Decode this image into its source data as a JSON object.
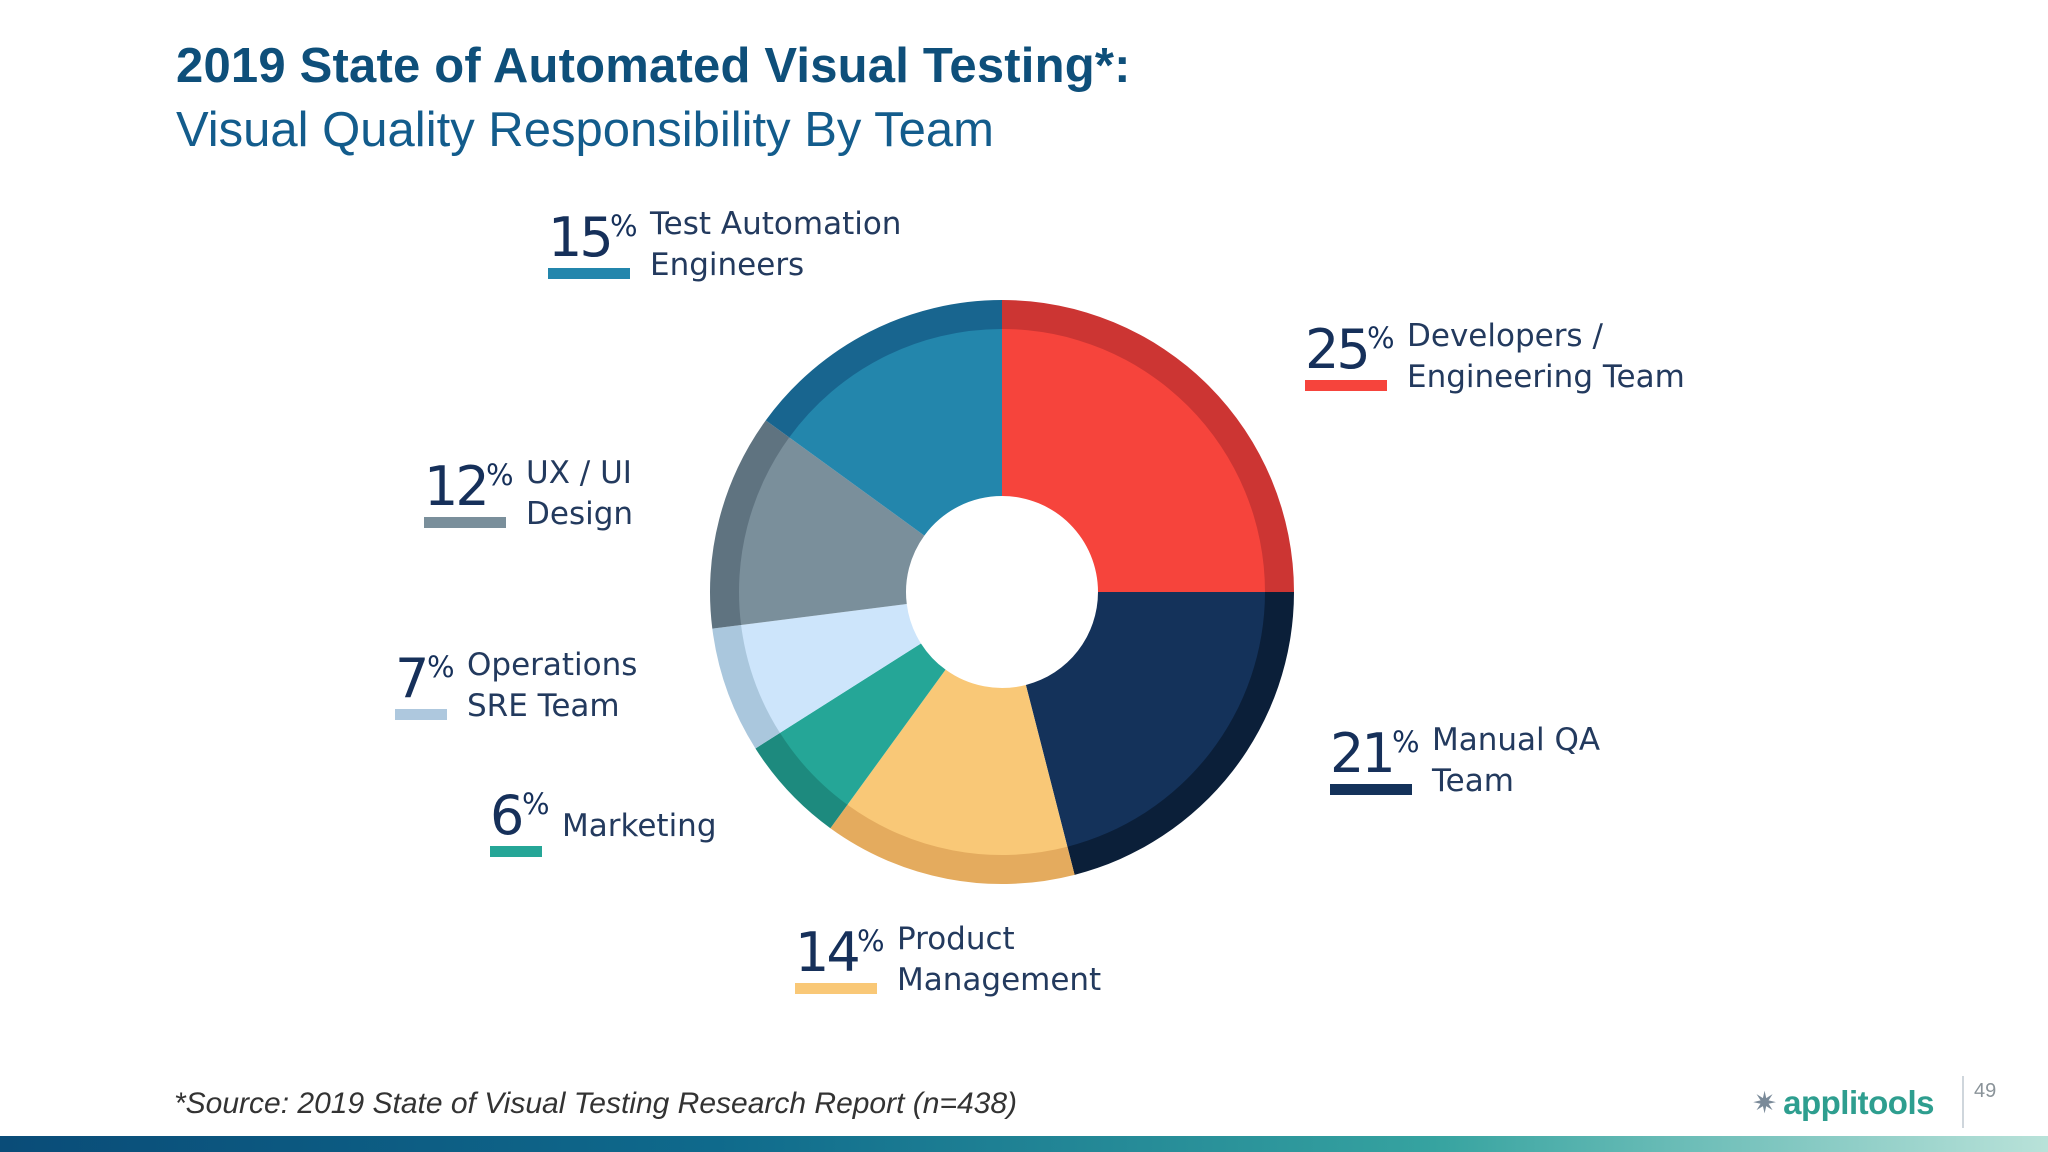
{
  "slide": {
    "title": "2019 State of Automated Visual Testing*:",
    "subtitle": "Visual Quality Responsibility By Team",
    "source": "*Source: 2019 State of Visual Testing Research Report (n=438)",
    "logo_text": "applitools",
    "logo_icon": "applitools-logo-icon",
    "page_number": "49"
  },
  "chart_data": {
    "type": "pie",
    "style": "donut",
    "title": "Visual Quality Responsibility By Team",
    "percent_sign": "%",
    "slices": [
      {
        "label": "Developers / Engineering Team",
        "label_lines": [
          "Developers /",
          "Engineering Team"
        ],
        "value": 25,
        "color": "#f6443c",
        "rim_color": "#cc3533"
      },
      {
        "label": "Manual QA Team",
        "label_lines": [
          "Manual QA",
          "Team"
        ],
        "value": 21,
        "color": "#14325a",
        "rim_color": "#0b1f39"
      },
      {
        "label": "Product Management",
        "label_lines": [
          "Product",
          "Management"
        ],
        "value": 14,
        "color": "#f9c877",
        "rim_color": "#e4ab5e"
      },
      {
        "label": "Marketing",
        "label_lines": [
          "Marketing"
        ],
        "value": 6,
        "color": "#25a697",
        "rim_color": "#1d8a7e"
      },
      {
        "label": "Operations SRE Team",
        "label_lines": [
          "Operations",
          "SRE Team"
        ],
        "value": 7,
        "color": "#cde5fb",
        "rim_color": "#aac7dd"
      },
      {
        "label": "UX / UI Design",
        "label_lines": [
          "UX / UI",
          "Design"
        ],
        "value": 12,
        "color": "#7a8f9b",
        "rim_color": "#5f7380"
      },
      {
        "label": "Test Automation Engineers",
        "label_lines": [
          "Test Automation",
          "Engineers"
        ],
        "value": 15,
        "color": "#2386ac",
        "rim_color": "#18658f"
      }
    ],
    "legend": "labels around chart"
  }
}
